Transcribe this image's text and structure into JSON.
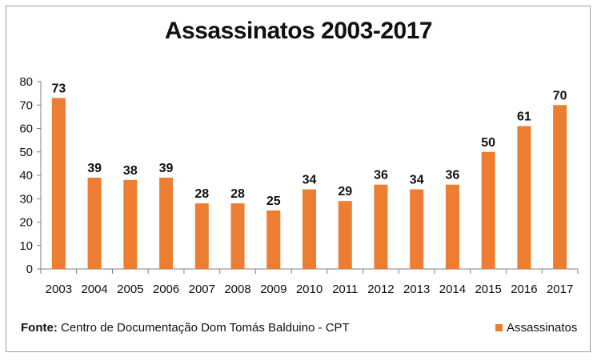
{
  "chart_data": {
    "type": "bar",
    "title": "Assassinatos 2003-2017",
    "categories": [
      "2003",
      "2004",
      "2005",
      "2006",
      "2007",
      "2008",
      "2009",
      "2010",
      "2011",
      "2012",
      "2013",
      "2014",
      "2015",
      "2016",
      "2017"
    ],
    "series": [
      {
        "name": "Assassinatos",
        "values": [
          73,
          39,
          38,
          39,
          28,
          28,
          25,
          34,
          29,
          36,
          34,
          36,
          50,
          61,
          70
        ],
        "color": "#ED7D31"
      }
    ],
    "ylim": [
      0,
      80
    ],
    "yticks": [
      0,
      10,
      20,
      30,
      40,
      50,
      60,
      70,
      80
    ],
    "grid": false,
    "legend": "bottom-right",
    "data_labels": true
  },
  "source": {
    "label": "Fonte:",
    "text": " Centro de Documentação Dom Tomás Balduino - CPT"
  }
}
